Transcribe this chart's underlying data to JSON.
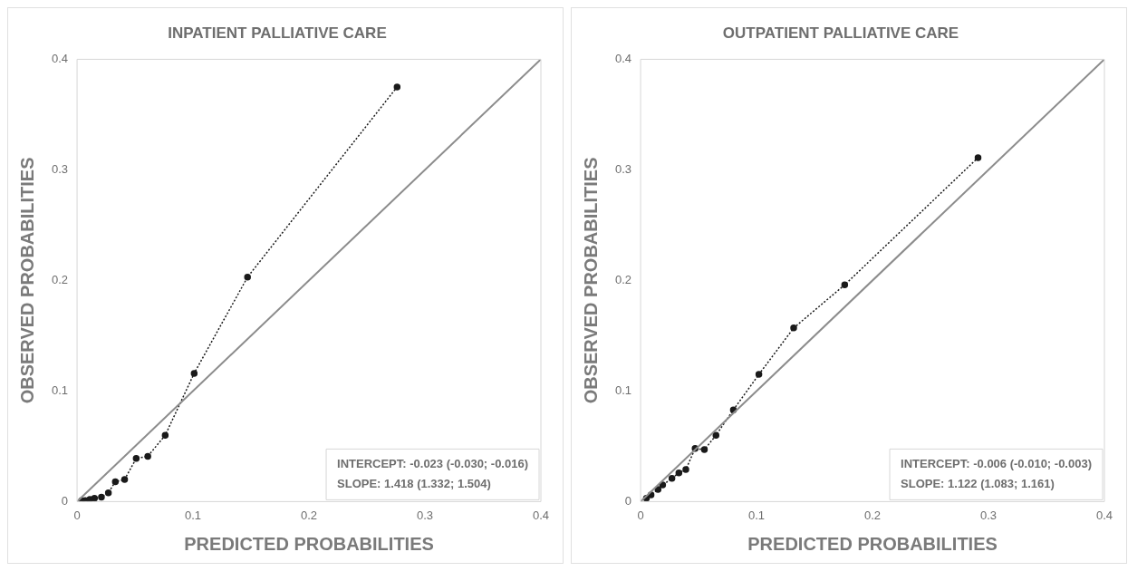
{
  "chart_data": [
    {
      "type": "line",
      "title": "INPATIENT PALLIATIVE CARE",
      "xlabel": "PREDICTED PROBABILITIES",
      "ylabel": "OBSERVED PROBABILITIES",
      "xlim": [
        0,
        0.4
      ],
      "xticks": [
        0,
        0.1,
        0.2,
        0.3,
        0.4
      ],
      "ylim": [
        0,
        0.4
      ],
      "yticks": [
        0,
        0.1,
        0.2,
        0.3,
        0.4
      ],
      "grid": false,
      "legend": false,
      "annotations": [
        "INTERCEPT: -0.023 (-0.030; -0.016)",
        "SLOPE: 1.418 (1.332; 1.504)"
      ],
      "series": [
        {
          "color": "#8c8c8c",
          "marker": "none",
          "line_style": "solid",
          "x": [
            0,
            0.4
          ],
          "values": [
            0,
            0.4
          ]
        },
        {
          "color": "#1a1a1a",
          "marker": "circle",
          "line_style": "dotted",
          "x": [
            0.004,
            0.007,
            0.011,
            0.015,
            0.021,
            0.027,
            0.033,
            0.041,
            0.051,
            0.061,
            0.076,
            0.101,
            0.147,
            0.276
          ],
          "values": [
            0.001,
            0.001,
            0.002,
            0.003,
            0.004,
            0.008,
            0.018,
            0.02,
            0.039,
            0.041,
            0.06,
            0.116,
            0.203,
            0.375
          ]
        }
      ]
    },
    {
      "type": "line",
      "title": "OUTPATIENT PALLIATIVE CARE",
      "xlabel": "PREDICTED PROBABILITIES",
      "ylabel": "OBSERVED PROBABILITIES",
      "xlim": [
        0,
        0.4
      ],
      "xticks": [
        0,
        0.1,
        0.2,
        0.3,
        0.4
      ],
      "ylim": [
        0,
        0.4
      ],
      "yticks": [
        0,
        0.1,
        0.2,
        0.3,
        0.4
      ],
      "grid": false,
      "legend": false,
      "annotations": [
        "INTERCEPT: -0.006 (-0.010; -0.003)",
        "SLOPE: 1.122 (1.083; 1.161)"
      ],
      "series": [
        {
          "color": "#8c8c8c",
          "marker": "none",
          "line_style": "solid",
          "x": [
            0,
            0.4
          ],
          "values": [
            0,
            0.4
          ]
        },
        {
          "color": "#1a1a1a",
          "marker": "circle",
          "line_style": "dotted",
          "x": [
            0.005,
            0.009,
            0.015,
            0.019,
            0.027,
            0.033,
            0.039,
            0.047,
            0.055,
            0.065,
            0.08,
            0.102,
            0.132,
            0.176,
            0.291
          ],
          "values": [
            0.003,
            0.006,
            0.011,
            0.015,
            0.021,
            0.026,
            0.029,
            0.048,
            0.047,
            0.06,
            0.083,
            0.115,
            0.157,
            0.196,
            0.311
          ]
        }
      ]
    }
  ]
}
